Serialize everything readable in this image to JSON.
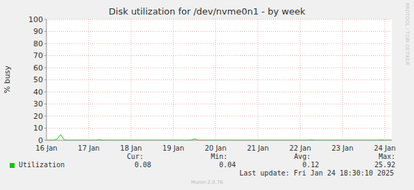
{
  "chart_data": {
    "type": "line",
    "title": "Disk utilization for /dev/nvme0n1 - by week",
    "y_label": "% busy",
    "categories": [
      "16 Jan",
      null,
      null,
      null,
      null,
      null,
      null,
      null,
      null,
      null,
      null,
      null,
      "17 Jan",
      null,
      null,
      null,
      null,
      null,
      null,
      null,
      null,
      null,
      null,
      null,
      "18 Jan",
      null,
      null,
      null,
      null,
      null,
      null,
      null,
      null,
      null,
      null,
      null,
      "19 Jan",
      null,
      null,
      null,
      null,
      null,
      null,
      null,
      null,
      null,
      null,
      null,
      "20 Jan",
      null,
      null,
      null,
      null,
      null,
      null,
      null,
      null,
      null,
      null,
      null,
      "21 Jan",
      null,
      null,
      null,
      null,
      null,
      null,
      null,
      null,
      null,
      null,
      null,
      "22 Jan",
      null,
      null,
      null,
      null,
      null,
      null,
      null,
      null,
      null,
      null,
      null,
      "23 Jan",
      null,
      null,
      null,
      null,
      null,
      null,
      null,
      null,
      null,
      null,
      null,
      "24 Jan",
      null,
      null
    ],
    "series": [
      {
        "name": "Utilization",
        "color": "#00cc00",
        "values": [
          0.1,
          0.12,
          0.1,
          0.9,
          4.7,
          0.5,
          0.1,
          0.12,
          0.1,
          0.1,
          0.14,
          0.1,
          0.1,
          0.12,
          0.1,
          0.6,
          0.12,
          0.1,
          0.1,
          0.12,
          0.1,
          0.1,
          0.12,
          0.1,
          0.1,
          0.1,
          0.12,
          0.1,
          0.1,
          0.12,
          0.1,
          0.1,
          0.12,
          0.1,
          0.1,
          0.12,
          0.1,
          0.1,
          0.12,
          0.1,
          0.1,
          0.3,
          1.1,
          0.2,
          0.1,
          0.12,
          0.1,
          0.1,
          0.12,
          0.1,
          0.1,
          0.12,
          0.1,
          0.1,
          0.12,
          0.1,
          0.1,
          0.12,
          0.1,
          0.1,
          0.12,
          0.1,
          0.1,
          0.12,
          0.1,
          0.1,
          0.12,
          0.1,
          0.1,
          0.12,
          0.1,
          0.1,
          0.12,
          0.1,
          0.1,
          0.5,
          0.12,
          0.1,
          0.1,
          0.12,
          0.1,
          0.1,
          0.12,
          0.1,
          0.1,
          0.12,
          0.1,
          0.1,
          0.12,
          0.1,
          0.1,
          0.12,
          0.1,
          0.1,
          0.12,
          0.4,
          0.12,
          0.1,
          0.08
        ]
      }
    ],
    "ylim": [
      0,
      100
    ],
    "yticks": [
      0,
      10,
      20,
      30,
      40,
      50,
      60,
      70,
      80,
      90,
      100
    ],
    "grid": true,
    "stats": {
      "headers": [
        "Cur:",
        "Min:",
        "Avg:",
        "Max:"
      ],
      "values": [
        0.08,
        0.04,
        0.12,
        25.92
      ]
    },
    "last_update": "Last update: Fri Jan 24 18:30:10 2025",
    "footer": "Munin 2.0.76",
    "watermark": "RRDTOOL / TOBI OETIKER"
  }
}
